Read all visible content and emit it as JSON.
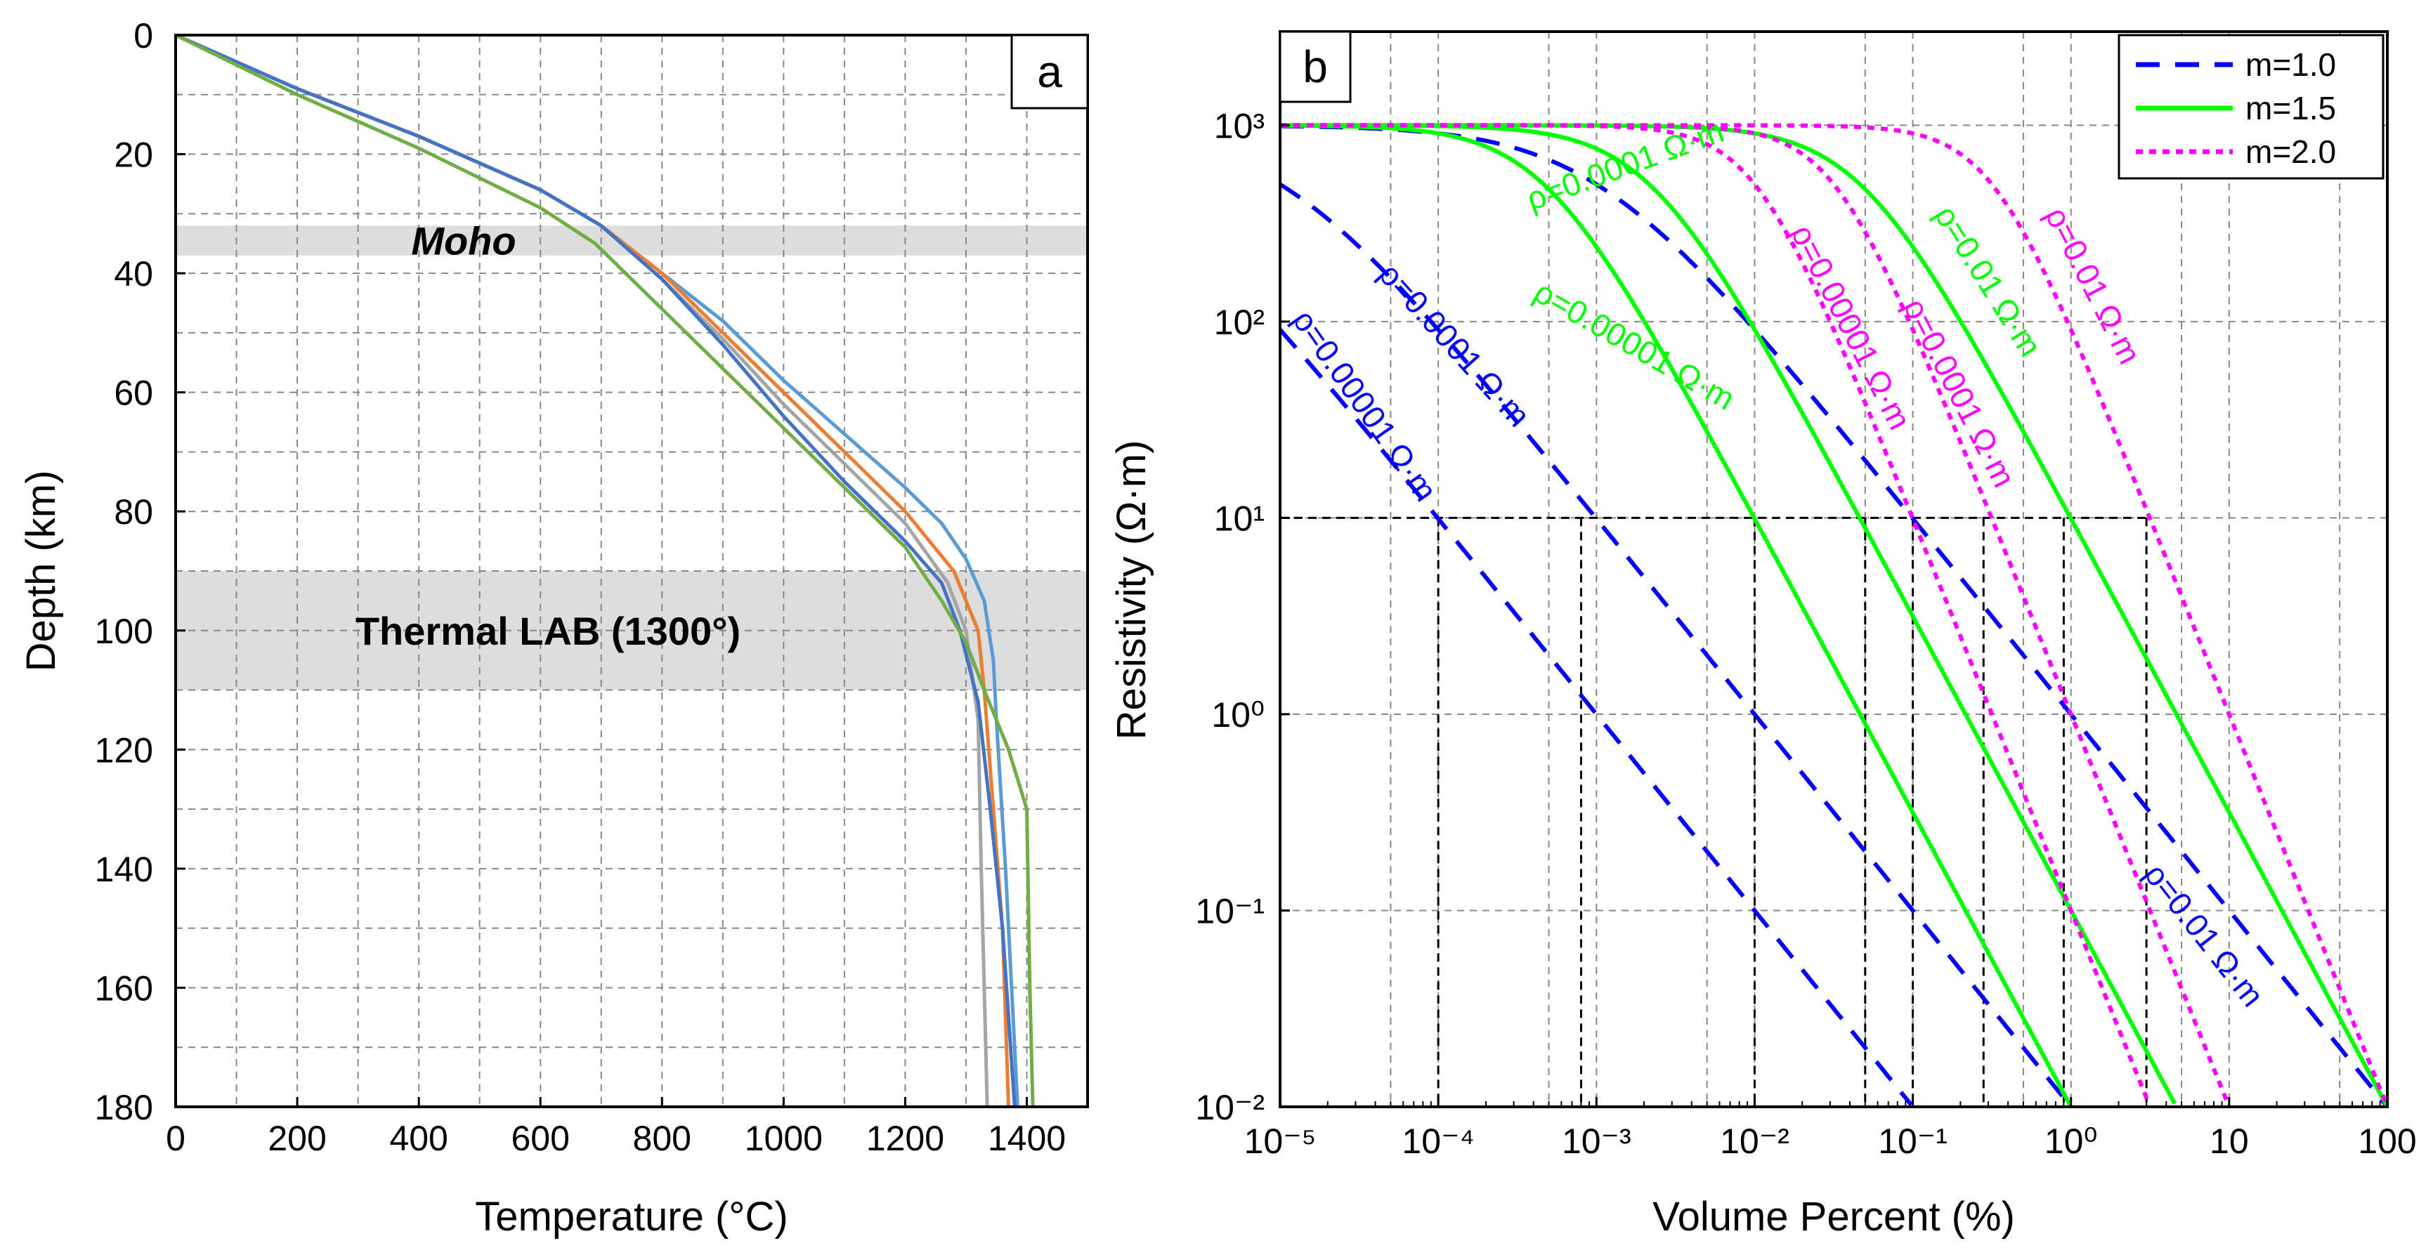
{
  "chart_data": [
    {
      "panel": "a",
      "type": "line",
      "xlabel": "Temperature (°C)",
      "ylabel": "Depth (km)",
      "xlim": [
        0,
        1500
      ],
      "ylim": [
        180,
        0
      ],
      "y_inverted": true,
      "xticks": [
        0,
        200,
        400,
        600,
        800,
        1000,
        1200,
        1400
      ],
      "yticks": [
        0,
        20,
        40,
        60,
        80,
        100,
        120,
        140,
        160,
        180
      ],
      "grid": true,
      "bands": [
        {
          "label": "Moho",
          "y_range": [
            32,
            37
          ]
        },
        {
          "label": "Thermal LAB (1300°)",
          "y_range": [
            90,
            110
          ]
        }
      ],
      "series": [
        {
          "color": "#5b9bd5",
          "points": [
            [
              0,
              0
            ],
            [
              200,
              9
            ],
            [
              400,
              17
            ],
            [
              600,
              26
            ],
            [
              700,
              32
            ],
            [
              800,
              40
            ],
            [
              900,
              48
            ],
            [
              1000,
              58
            ],
            [
              1100,
              67
            ],
            [
              1200,
              76
            ],
            [
              1260,
              82
            ],
            [
              1300,
              88
            ],
            [
              1330,
              95
            ],
            [
              1345,
              105
            ],
            [
              1350,
              115
            ],
            [
              1365,
              140
            ],
            [
              1385,
              180
            ]
          ]
        },
        {
          "color": "#ed7d31",
          "points": [
            [
              0,
              0
            ],
            [
              200,
              9
            ],
            [
              400,
              17
            ],
            [
              600,
              26
            ],
            [
              700,
              32
            ],
            [
              800,
              40
            ],
            [
              900,
              50
            ],
            [
              1000,
              60
            ],
            [
              1100,
              70
            ],
            [
              1200,
              80
            ],
            [
              1280,
              90
            ],
            [
              1320,
              100
            ],
            [
              1330,
              110
            ],
            [
              1345,
              130
            ],
            [
              1360,
              150
            ],
            [
              1370,
              180
            ]
          ]
        },
        {
          "color": "#a5a5a5",
          "points": [
            [
              0,
              0
            ],
            [
              200,
              9
            ],
            [
              400,
              17
            ],
            [
              600,
              26
            ],
            [
              700,
              32
            ],
            [
              800,
              41
            ],
            [
              900,
              51
            ],
            [
              1000,
              62
            ],
            [
              1100,
              72
            ],
            [
              1200,
              82
            ],
            [
              1270,
              92
            ],
            [
              1300,
              100
            ],
            [
              1320,
              115
            ],
            [
              1325,
              140
            ],
            [
              1335,
              180
            ]
          ]
        },
        {
          "color": "#4472c4",
          "points": [
            [
              0,
              0
            ],
            [
              200,
              9
            ],
            [
              400,
              17
            ],
            [
              600,
              26
            ],
            [
              700,
              32
            ],
            [
              800,
              41
            ],
            [
              900,
              52
            ],
            [
              1000,
              64
            ],
            [
              1100,
              75
            ],
            [
              1200,
              85
            ],
            [
              1260,
              92
            ],
            [
              1290,
              100
            ],
            [
              1320,
              112
            ],
            [
              1340,
              130
            ],
            [
              1360,
              150
            ],
            [
              1380,
              180
            ]
          ]
        },
        {
          "color": "#70ad47",
          "points": [
            [
              0,
              0
            ],
            [
              200,
              10
            ],
            [
              400,
              19
            ],
            [
              600,
              29
            ],
            [
              690,
              35
            ],
            [
              800,
              46
            ],
            [
              900,
              56
            ],
            [
              1000,
              66
            ],
            [
              1100,
              76
            ],
            [
              1200,
              86
            ],
            [
              1260,
              95
            ],
            [
              1300,
              102
            ],
            [
              1330,
              110
            ],
            [
              1370,
              120
            ],
            [
              1400,
              130
            ],
            [
              1405,
              160
            ],
            [
              1410,
              180
            ]
          ]
        }
      ]
    },
    {
      "panel": "b",
      "type": "line",
      "xlabel": "Volume Percent (%)",
      "ylabel": "Resistivity (Ω·m)",
      "x_scale": "log",
      "y_scale": "log",
      "xlim": [
        1e-05,
        100
      ],
      "ylim": [
        0.01,
        3000
      ],
      "xticks": [
        "10⁻⁵",
        "10⁻⁴",
        "10⁻³",
        "10⁻²",
        "10⁻¹",
        "10⁰",
        "10",
        "100"
      ],
      "yticks": [
        "10⁻²",
        "10⁻¹",
        "10⁰",
        "10¹",
        "10²",
        "10³"
      ],
      "grid": true,
      "legend": {
        "placement": "top-right",
        "entries": [
          {
            "label": "m=1.0",
            "color": "#0000ff",
            "style": "dashed"
          },
          {
            "label": "m=1.5",
            "color": "#00ff00",
            "style": "solid"
          },
          {
            "label": "m=2.0",
            "color": "#ff00ff",
            "style": "dotted"
          }
        ]
      },
      "host_resistivity": 1000,
      "bulk_reference": 100,
      "series": [
        {
          "m": 1.0,
          "melt_resistivity": 1e-05,
          "color": "#0000ff",
          "style": "dashed",
          "label": "ρ=0.00001 Ω·m"
        },
        {
          "m": 1.0,
          "melt_resistivity": 0.0001,
          "color": "#0000ff",
          "style": "dashed",
          "label": "ρ=0.0001 Ω·m"
        },
        {
          "m": 1.0,
          "melt_resistivity": 0.01,
          "color": "#0000ff",
          "style": "dashed",
          "label": "ρ=0.01 Ω·m"
        },
        {
          "m": 1.5,
          "melt_resistivity": 1e-05,
          "color": "#00ff00",
          "style": "solid",
          "label": "ρ=0.00001 Ω·m"
        },
        {
          "m": 1.5,
          "melt_resistivity": 0.0001,
          "color": "#00ff00",
          "style": "solid",
          "label": "ρ=0.0001 Ω·m"
        },
        {
          "m": 1.5,
          "melt_resistivity": 0.01,
          "color": "#00ff00",
          "style": "solid",
          "label": "ρ=0.01 Ω·m"
        },
        {
          "m": 2.0,
          "melt_resistivity": 1e-05,
          "color": "#ff00ff",
          "style": "dotted",
          "label": "ρ=0.00001 Ω·m"
        },
        {
          "m": 2.0,
          "melt_resistivity": 0.0001,
          "color": "#ff00ff",
          "style": "dotted",
          "label": "ρ=0.0001 Ω·m"
        },
        {
          "m": 2.0,
          "melt_resistivity": 0.01,
          "color": "#ff00ff",
          "style": "dotted",
          "label": "ρ=0.01 Ω·m"
        }
      ],
      "reference_line": {
        "y": 10,
        "x_drops": [
          0.0001,
          0.0008,
          0.01,
          0.05,
          0.1,
          0.28,
          0.9,
          3
        ]
      }
    }
  ]
}
